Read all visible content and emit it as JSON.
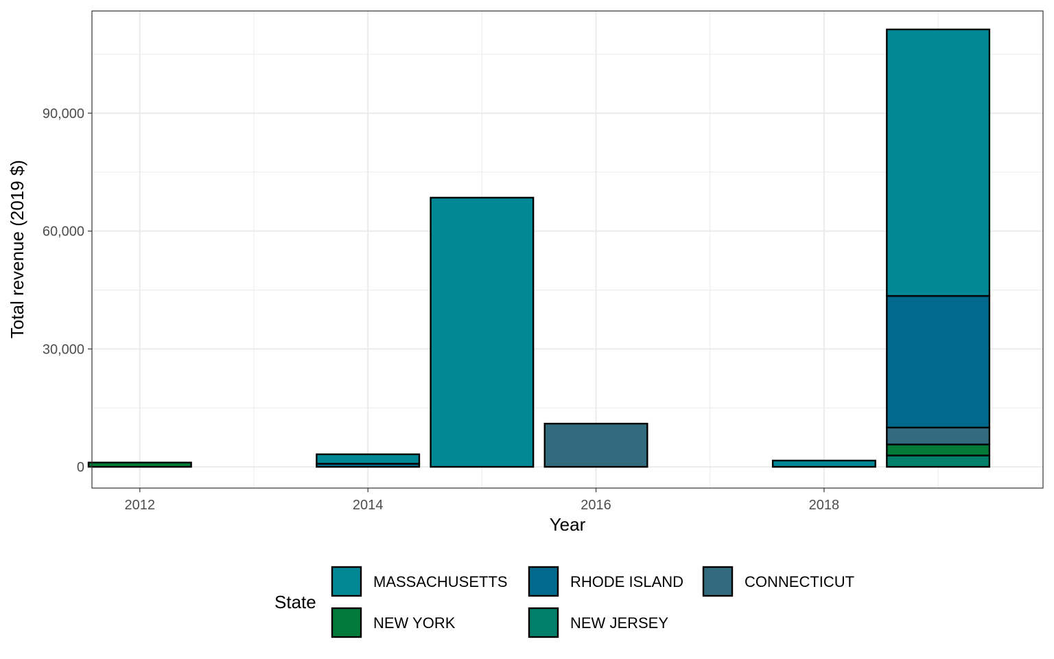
{
  "chart_data": {
    "type": "bar",
    "stacked": true,
    "title": "",
    "xlabel": "Year",
    "ylabel": "Total revenue (2019 $)",
    "x_ticks": [
      2012,
      2014,
      2016,
      2018
    ],
    "y_ticks": [
      0,
      30000,
      60000,
      90000
    ],
    "y_tick_labels": [
      "0",
      "30,000",
      "60,000",
      "90,000"
    ],
    "xlim": [
      2011.58,
      2019.92
    ],
    "ylim": [
      -5400,
      116000
    ],
    "grid": true,
    "legend": {
      "title": "State",
      "placement": "bottom",
      "entries": [
        "MASSACHUSETTS",
        "RHODE ISLAND",
        "CONNECTICUT",
        "NEW YORK",
        "NEW JERSEY"
      ]
    },
    "stack_order_bottom_to_top": [
      "NEW JERSEY",
      "NEW YORK",
      "CONNECTICUT",
      "RHODE ISLAND",
      "MASSACHUSETTS"
    ],
    "series": [
      {
        "name": "MASSACHUSETTS",
        "color": "#008896",
        "values": [
          [
            2014,
            2400
          ],
          [
            2015,
            68500
          ],
          [
            2018,
            1600
          ],
          [
            2019,
            67800
          ]
        ]
      },
      {
        "name": "RHODE ISLAND",
        "color": "#00698c",
        "values": [
          [
            2014,
            800
          ],
          [
            2019,
            33500
          ]
        ]
      },
      {
        "name": "CONNECTICUT",
        "color": "#336b7e",
        "values": [
          [
            2016,
            11000
          ],
          [
            2019,
            4300
          ]
        ]
      },
      {
        "name": "NEW YORK",
        "color": "#007a38",
        "values": [
          [
            2012,
            1100
          ],
          [
            2019,
            2800
          ]
        ]
      },
      {
        "name": "NEW JERSEY",
        "color": "#00806a",
        "values": [
          [
            2019,
            2900
          ]
        ]
      }
    ]
  }
}
